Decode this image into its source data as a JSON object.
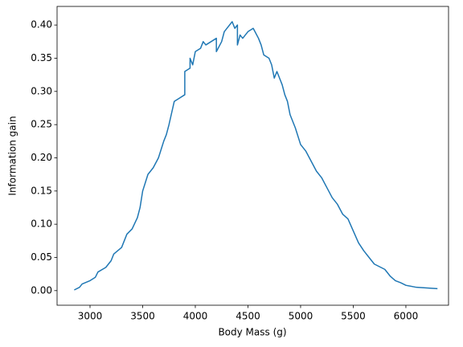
{
  "chart_data": {
    "type": "line",
    "xlabel": "Body Mass (g)",
    "ylabel": "Information gain",
    "x": [
      2850,
      2900,
      2925,
      3000,
      3050,
      3075,
      3150,
      3200,
      3225,
      3300,
      3325,
      3350,
      3400,
      3450,
      3475,
      3500,
      3550,
      3600,
      3650,
      3700,
      3725,
      3750,
      3800,
      3850,
      3900,
      3900,
      3950,
      3950,
      3975,
      4000,
      4050,
      4075,
      4100,
      4150,
      4200,
      4200,
      4250,
      4275,
      4300,
      4350,
      4375,
      4400,
      4400,
      4425,
      4450,
      4500,
      4550,
      4600,
      4625,
      4650,
      4700,
      4725,
      4750,
      4775,
      4800,
      4825,
      4850,
      4875,
      4900,
      4950,
      5000,
      5050,
      5100,
      5150,
      5200,
      5250,
      5300,
      5350,
      5400,
      5450,
      5500,
      5550,
      5600,
      5650,
      5700,
      5800,
      5850,
      5900,
      5950,
      6000,
      6100,
      6300
    ],
    "series": [
      {
        "name": "Information gain",
        "color": "#1f77b4",
        "values": [
          0.001,
          0.005,
          0.01,
          0.015,
          0.02,
          0.028,
          0.035,
          0.045,
          0.055,
          0.065,
          0.075,
          0.085,
          0.093,
          0.11,
          0.125,
          0.15,
          0.175,
          0.185,
          0.2,
          0.225,
          0.235,
          0.25,
          0.285,
          0.29,
          0.295,
          0.33,
          0.335,
          0.35,
          0.34,
          0.36,
          0.365,
          0.375,
          0.37,
          0.375,
          0.38,
          0.36,
          0.375,
          0.39,
          0.395,
          0.405,
          0.395,
          0.4,
          0.37,
          0.385,
          0.38,
          0.39,
          0.395,
          0.38,
          0.37,
          0.355,
          0.35,
          0.34,
          0.32,
          0.33,
          0.32,
          0.31,
          0.295,
          0.285,
          0.265,
          0.245,
          0.22,
          0.21,
          0.195,
          0.18,
          0.17,
          0.155,
          0.14,
          0.13,
          0.115,
          0.108,
          0.09,
          0.072,
          0.06,
          0.05,
          0.04,
          0.032,
          0.022,
          0.015,
          0.012,
          0.008,
          0.005,
          0.003
        ]
      }
    ],
    "xlim": [
      2687,
      6405
    ],
    "ylim": [
      -0.022,
      0.428
    ],
    "xticks": [
      3000,
      3500,
      4000,
      4500,
      5000,
      5500,
      6000
    ],
    "yticks": [
      {
        "value": 0,
        "label": "0.00"
      },
      {
        "value": 0.05,
        "label": "0.05"
      },
      {
        "value": 0.1,
        "label": "0.10"
      },
      {
        "value": 0.15,
        "label": "0.15"
      },
      {
        "value": 0.2,
        "label": "0.20"
      },
      {
        "value": 0.25,
        "label": "0.25"
      },
      {
        "value": 0.3,
        "label": "0.30"
      },
      {
        "value": 0.35,
        "label": "0.35"
      },
      {
        "value": 0.4,
        "label": "0.40"
      }
    ],
    "grid": false
  }
}
